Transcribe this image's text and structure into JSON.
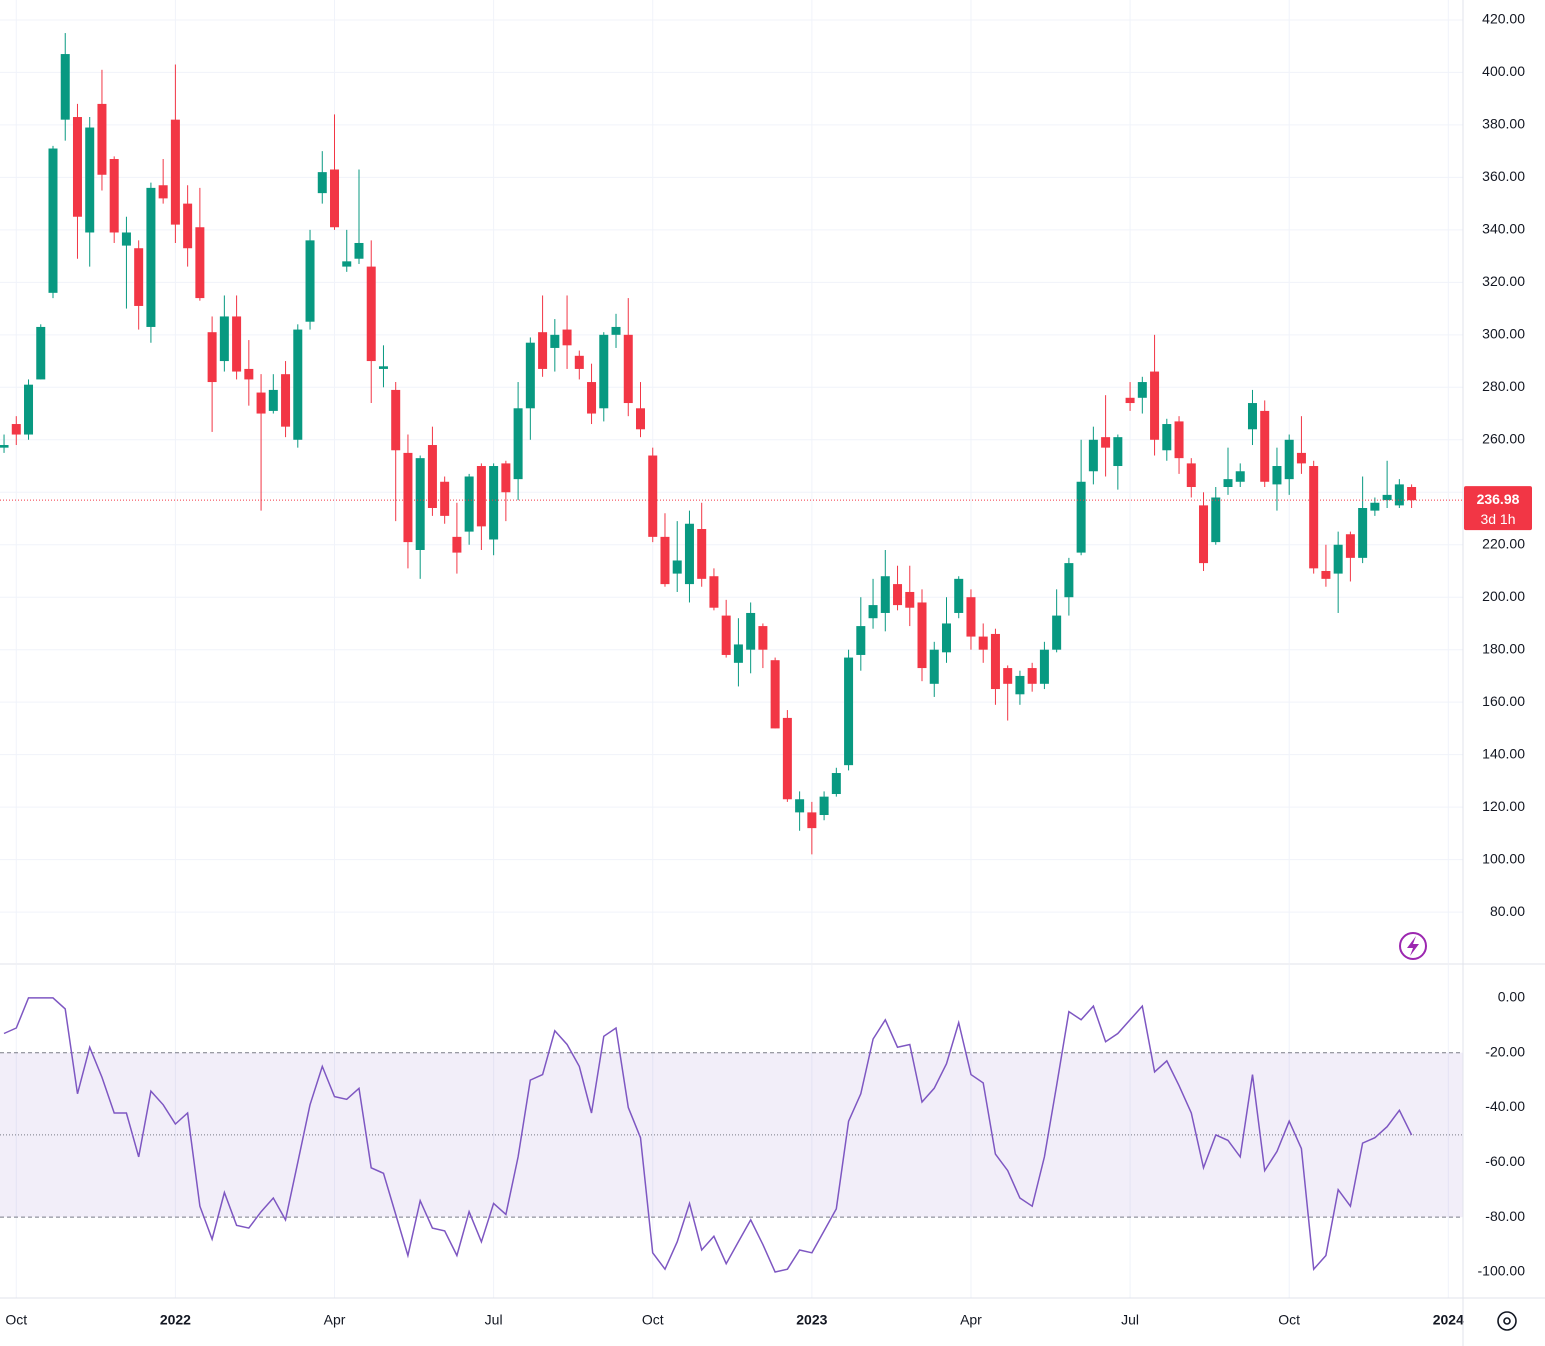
{
  "chart_data": [
    {
      "type": "candlestick",
      "up_color": "#089981",
      "down_color": "#f23645",
      "grid": true,
      "xlim": [
        -0.33,
        119.2
      ],
      "xticks": [
        {
          "value": 1,
          "label": "Oct"
        },
        {
          "value": 14,
          "label": "2022"
        },
        {
          "value": 27,
          "label": "Apr"
        },
        {
          "value": 40,
          "label": "Jul"
        },
        {
          "value": 53,
          "label": "Oct"
        },
        {
          "value": 66,
          "label": "2023"
        },
        {
          "value": 79,
          "label": "Apr"
        },
        {
          "value": 92,
          "label": "Jul"
        },
        {
          "value": 105,
          "label": "Oct"
        },
        {
          "value": 118,
          "label": "2024"
        }
      ],
      "ylim": [
        60.6,
        427.6
      ],
      "yticks": [
        {
          "value": 80,
          "label": "80.00"
        },
        {
          "value": 100,
          "label": "100.00"
        },
        {
          "value": 120,
          "label": "120.00"
        },
        {
          "value": 140,
          "label": "140.00"
        },
        {
          "value": 160,
          "label": "160.00"
        },
        {
          "value": 180,
          "label": "180.00"
        },
        {
          "value": 200,
          "label": "200.00"
        },
        {
          "value": 220,
          "label": "220.00"
        },
        {
          "value": 240,
          "label": "240.00"
        },
        {
          "value": 260,
          "label": "260.00"
        },
        {
          "value": 280,
          "label": "280.00"
        },
        {
          "value": 300,
          "label": "300.00"
        },
        {
          "value": 320,
          "label": "320.00"
        },
        {
          "value": 340,
          "label": "340.00"
        },
        {
          "value": 360,
          "label": "360.00"
        },
        {
          "value": 380,
          "label": "380.00"
        },
        {
          "value": 400,
          "label": "400.00"
        },
        {
          "value": 420,
          "label": "420.00"
        }
      ],
      "last_price": 236.98,
      "countdown": "3d 1h",
      "open": [
        257,
        266,
        262,
        283,
        316,
        382,
        383,
        339,
        388,
        367,
        334,
        333,
        303,
        357,
        382,
        350,
        341,
        301,
        290,
        307,
        287,
        278,
        271,
        285,
        260,
        305,
        354,
        363,
        326,
        329,
        326,
        287,
        279,
        255,
        218,
        258,
        244,
        223,
        225,
        250,
        222,
        251,
        245,
        272,
        301,
        295,
        302,
        292,
        282,
        272,
        300,
        300,
        272,
        254,
        223,
        209,
        205,
        226,
        208,
        193,
        175,
        180,
        189,
        176,
        154,
        118,
        118,
        117,
        125,
        136,
        178,
        192,
        194,
        205,
        202,
        198,
        167,
        179,
        194,
        200,
        185,
        186,
        173,
        163,
        173,
        167,
        180,
        200,
        217,
        248,
        261,
        250,
        276,
        276,
        286,
        256,
        267,
        251,
        235,
        221,
        242,
        244,
        264,
        271,
        243,
        245,
        255,
        250,
        210,
        209,
        224,
        215,
        233,
        237,
        235,
        242
      ],
      "high": [
        262,
        269,
        283,
        304,
        372,
        415,
        388,
        383,
        401,
        368,
        345,
        336,
        358,
        367,
        403,
        357,
        356,
        307,
        315,
        315,
        298,
        285,
        285,
        290,
        304,
        340,
        370,
        384,
        340,
        363,
        336,
        296,
        282,
        262,
        254,
        265,
        246,
        236,
        247,
        251,
        251,
        252,
        282,
        299,
        315,
        306,
        315,
        294,
        289,
        301,
        308,
        314,
        282,
        257,
        232,
        229,
        233,
        236,
        211,
        199,
        192,
        198,
        190,
        177,
        157,
        126,
        122,
        126,
        135,
        180,
        200,
        207,
        218,
        212,
        212,
        203,
        183,
        200,
        208,
        203,
        190,
        188,
        174,
        172,
        175,
        183,
        203,
        215,
        260,
        265,
        277,
        262,
        282,
        284,
        300,
        268,
        269,
        253,
        240,
        242,
        257,
        251,
        279,
        275,
        257,
        262,
        269,
        252,
        220,
        225,
        225,
        246,
        238,
        252,
        245,
        243
      ],
      "low": [
        255,
        258,
        260,
        283,
        314,
        374,
        329,
        326,
        355,
        335,
        310,
        302,
        297,
        350,
        335,
        326,
        313,
        263,
        286,
        283,
        273,
        233,
        270,
        261,
        257,
        302,
        350,
        340,
        324,
        327,
        274,
        280,
        229,
        211,
        207,
        231,
        228,
        209,
        220,
        218,
        216,
        229,
        237,
        260,
        284,
        286,
        287,
        283,
        266,
        267,
        295,
        269,
        261,
        221,
        204,
        202,
        198,
        204,
        195,
        177,
        166,
        171,
        173,
        150,
        122,
        111,
        102,
        115,
        124,
        134,
        172,
        188,
        187,
        195,
        189,
        168,
        162,
        175,
        192,
        180,
        175,
        159,
        153,
        159,
        164,
        165,
        179,
        193,
        216,
        243,
        246,
        241,
        271,
        270,
        254,
        252,
        247,
        238,
        210,
        220,
        239,
        242,
        258,
        242,
        233,
        239,
        247,
        209,
        204,
        194,
        206,
        213,
        231,
        234,
        234,
        234
      ],
      "close": [
        258,
        262,
        281,
        303,
        371,
        407,
        345,
        379,
        361,
        339,
        339,
        311,
        356,
        352,
        342,
        333,
        314,
        282,
        307,
        286,
        283,
        270,
        279,
        265,
        302,
        336,
        362,
        341,
        328,
        335,
        290,
        288,
        256,
        221,
        253,
        234,
        231,
        217,
        246,
        227,
        250,
        240,
        272,
        297,
        287,
        300,
        296,
        287,
        270,
        300,
        303,
        274,
        264,
        223,
        205,
        214,
        228,
        207,
        196,
        178,
        182,
        194,
        180,
        150,
        123,
        123,
        112,
        124,
        133,
        177,
        189,
        197,
        208,
        197,
        196,
        173,
        180,
        190,
        207,
        185,
        180,
        165,
        167,
        170,
        167,
        180,
        193,
        213,
        244,
        260,
        257,
        261,
        274,
        282,
        260,
        266,
        253,
        242,
        213,
        238,
        245,
        248,
        274,
        244,
        250,
        260,
        251,
        211,
        207,
        220,
        215,
        234,
        236,
        239,
        243,
        236.98
      ]
    },
    {
      "type": "line",
      "color": "#7e57c2",
      "ylim": [
        -109.5,
        12
      ],
      "yticks": [
        {
          "value": -100,
          "label": "-100.00"
        },
        {
          "value": -80,
          "label": "-80.00"
        },
        {
          "value": -60,
          "label": "-60.00"
        },
        {
          "value": -40,
          "label": "-40.00"
        },
        {
          "value": -20,
          "label": "-20.00"
        },
        {
          "value": 0,
          "label": "0.00"
        }
      ],
      "upper_band": -20,
      "lower_band": -80,
      "middle_line": -50,
      "band_color": "#7e57c2",
      "values": [
        -13,
        -11,
        0,
        0,
        0,
        -4,
        -35,
        -18,
        -29,
        -42,
        -42,
        -58,
        -34,
        -39,
        -46,
        -42,
        -76,
        -88,
        -71,
        -83,
        -84,
        -78,
        -73,
        -81,
        -60,
        -39,
        -25,
        -36,
        -37,
        -33,
        -62,
        -64,
        -79,
        -94,
        -74,
        -84,
        -85,
        -94,
        -78,
        -89,
        -75,
        -79,
        -58,
        -30,
        -28,
        -12,
        -17,
        -25,
        -42,
        -14,
        -11,
        -40,
        -51,
        -93,
        -99,
        -89,
        -75,
        -92,
        -87,
        -97,
        -89,
        -81,
        -90,
        -100,
        -99,
        -92,
        -93,
        -85,
        -77,
        -45,
        -35,
        -15,
        -8,
        -18,
        -17,
        -38,
        -33,
        -24,
        -9,
        -28,
        -31,
        -57,
        -63,
        -73,
        -76,
        -58,
        -32,
        -5,
        -8,
        -3,
        -16,
        -13,
        -8,
        -3,
        -27,
        -23,
        -32,
        -42,
        -62,
        -50,
        -52,
        -58,
        -28,
        -63,
        -56,
        -45,
        -55,
        -99,
        -94,
        -70,
        -76,
        -53,
        -51,
        -47,
        -41,
        -50
      ]
    }
  ]
}
